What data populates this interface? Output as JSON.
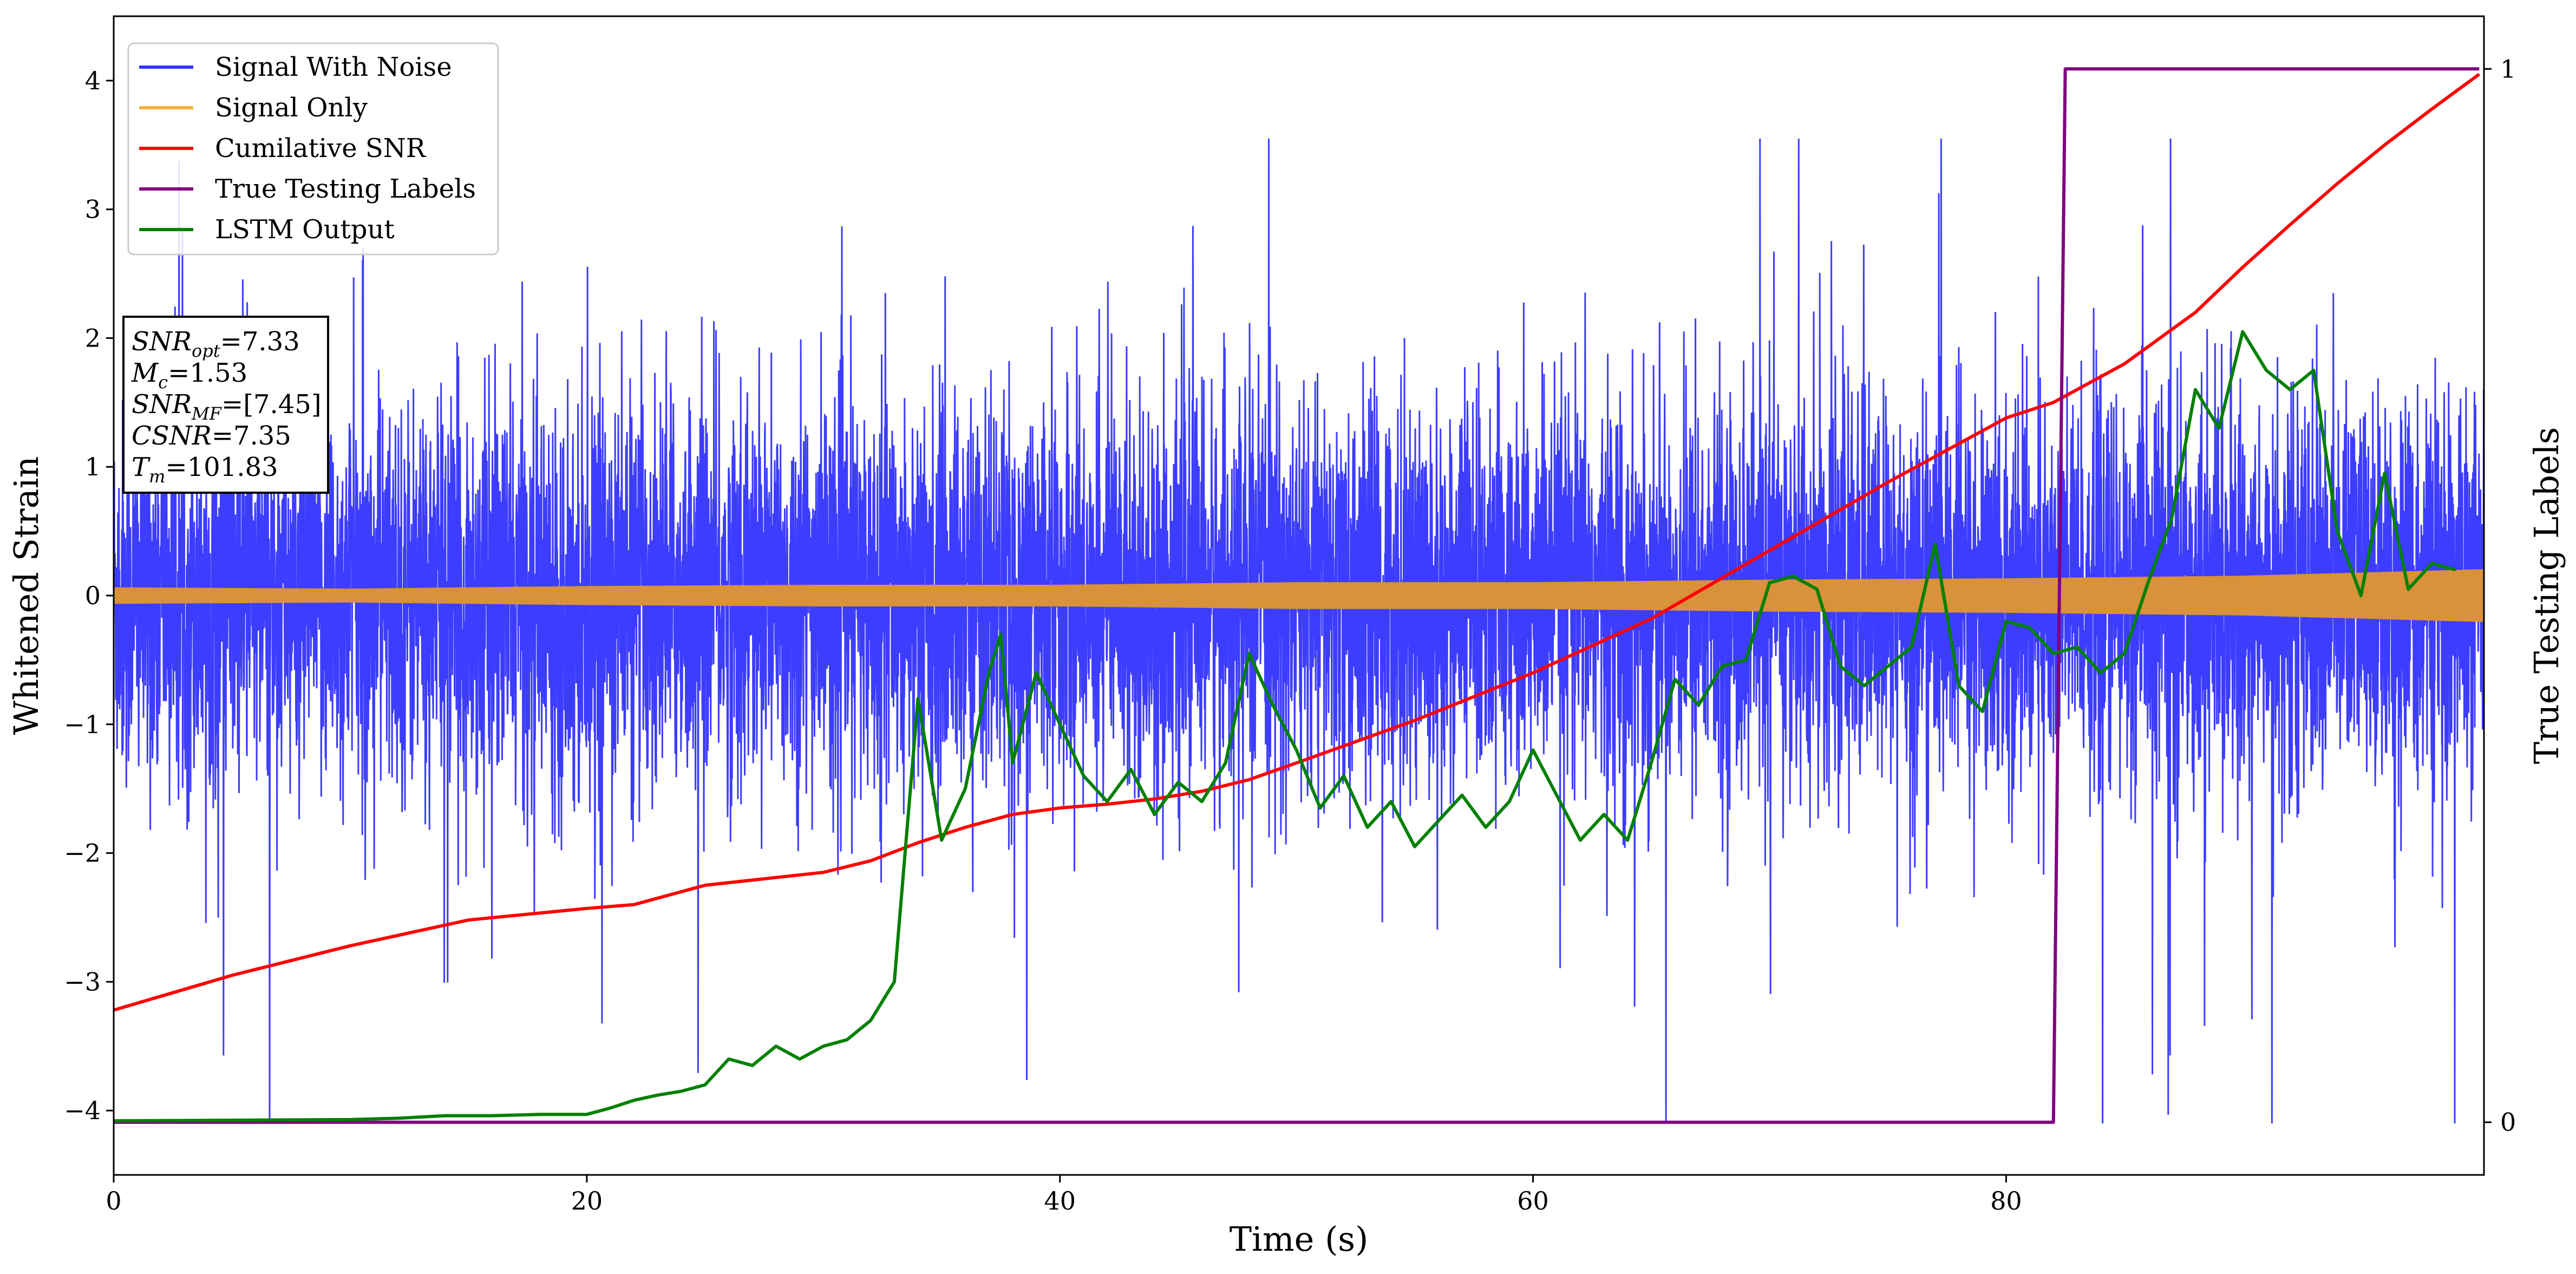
{
  "chart_data": {
    "type": "line",
    "xlabel": "Time (s)",
    "ylabel": "Whitened Strain",
    "y2label": "True Testing Labels",
    "xlim": [
      0,
      100.2
    ],
    "ylim": [
      -4.5,
      4.5
    ],
    "y2lim": [
      -0.05,
      1.05
    ],
    "xticks": [
      "0",
      "20",
      "40",
      "60",
      "80"
    ],
    "xtick_values": [
      0,
      20,
      40,
      60,
      80
    ],
    "yticks": [
      "−4",
      "−3",
      "−2",
      "−1",
      "0",
      "1",
      "2",
      "3",
      "4"
    ],
    "ytick_values": [
      -4,
      -3,
      -2,
      -1,
      0,
      1,
      2,
      3,
      4
    ],
    "y2ticks": [
      "0",
      "1"
    ],
    "y2tick_values": [
      0,
      1
    ],
    "legend_position": "upper-left",
    "series": [
      {
        "name": "Signal With Noise",
        "color": "#3333ff",
        "description_values": "noise band, mostly within [-1.9, 2.1], spikes up to about 3.5 and down to about -4.1",
        "typical_amplitude": [
          -1.9,
          2.1
        ],
        "extremes": [
          -4.1,
          3.55
        ]
      },
      {
        "name": "Signal Only",
        "color": "#f5b342",
        "envelope": {
          "x": [
            0,
            10,
            20,
            30,
            40,
            50,
            60,
            70,
            80,
            90,
            100
          ],
          "amplitude": [
            0.06,
            0.05,
            0.07,
            0.08,
            0.08,
            0.1,
            0.1,
            0.12,
            0.13,
            0.15,
            0.2
          ]
        }
      },
      {
        "name": "Cumilative SNR",
        "color": "#ff0000",
        "x": [
          0,
          5,
          10,
          15,
          20,
          22,
          25,
          28,
          30,
          32,
          34,
          36,
          38,
          40,
          42,
          44,
          46,
          48,
          50,
          55,
          60,
          65,
          70,
          75,
          80,
          82,
          85,
          88,
          90,
          92,
          94,
          96,
          98,
          100
        ],
        "y": [
          -3.22,
          -2.95,
          -2.72,
          -2.52,
          -2.43,
          -2.4,
          -2.25,
          -2.19,
          -2.15,
          -2.06,
          -1.92,
          -1.8,
          -1.7,
          -1.65,
          -1.62,
          -1.58,
          -1.52,
          -1.43,
          -1.3,
          -0.97,
          -0.6,
          -0.18,
          0.35,
          0.88,
          1.38,
          1.5,
          1.8,
          2.2,
          2.55,
          2.88,
          3.2,
          3.5,
          3.78,
          4.05
        ]
      },
      {
        "name": "True Testing Labels",
        "color": "#800080",
        "axis": "right",
        "x": [
          0,
          82.0,
          82.5,
          100
        ],
        "y": [
          0,
          0,
          1,
          1
        ]
      },
      {
        "name": "LSTM Output",
        "color": "#008000",
        "x": [
          0,
          10,
          12,
          14,
          16,
          18,
          20,
          21,
          22,
          23,
          24,
          25,
          26,
          27,
          28,
          29,
          30,
          31,
          32,
          33,
          34,
          35,
          36,
          37,
          37.5,
          38,
          39,
          40,
          41,
          42,
          43,
          44,
          45,
          46,
          47,
          48,
          49,
          50,
          51,
          52,
          53,
          54,
          55,
          56,
          57,
          58,
          59,
          60,
          61,
          62,
          63,
          64,
          65,
          66,
          67,
          68,
          69,
          70,
          71,
          72,
          73,
          74,
          75,
          76,
          77,
          78,
          79,
          80,
          81,
          82,
          83,
          84,
          85,
          86,
          87,
          88,
          89,
          90,
          91,
          92,
          93,
          94,
          95,
          96,
          97,
          98,
          99
        ],
        "y": [
          -4.08,
          -4.07,
          -4.06,
          -4.04,
          -4.04,
          -4.03,
          -4.03,
          -3.98,
          -3.92,
          -3.88,
          -3.85,
          -3.8,
          -3.6,
          -3.65,
          -3.5,
          -3.6,
          -3.5,
          -3.45,
          -3.3,
          -3.0,
          -0.8,
          -1.9,
          -1.5,
          -0.6,
          -0.3,
          -1.3,
          -0.6,
          -1.0,
          -1.4,
          -1.6,
          -1.35,
          -1.7,
          -1.45,
          -1.6,
          -1.3,
          -0.45,
          -0.85,
          -1.2,
          -1.65,
          -1.4,
          -1.8,
          -1.6,
          -1.95,
          -1.75,
          -1.55,
          -1.8,
          -1.6,
          -1.2,
          -1.55,
          -1.9,
          -1.7,
          -1.9,
          -1.3,
          -0.65,
          -0.85,
          -0.55,
          -0.5,
          0.1,
          0.15,
          0.05,
          -0.55,
          -0.7,
          -0.55,
          -0.4,
          0.4,
          -0.7,
          -0.9,
          -0.2,
          -0.25,
          -0.45,
          -0.4,
          -0.6,
          -0.45,
          0.1,
          0.6,
          1.6,
          1.3,
          2.05,
          1.75,
          1.6,
          1.75,
          0.5,
          0.0,
          0.95,
          0.05,
          0.25,
          0.2
        ]
      }
    ]
  },
  "legend": {
    "items": [
      {
        "label": "Signal With Noise",
        "color": "#3333ff"
      },
      {
        "label": "Signal Only",
        "color": "#f5b342"
      },
      {
        "label": "Cumilative SNR",
        "color": "#ff0000"
      },
      {
        "label": "True Testing Labels",
        "color": "#800080"
      },
      {
        "label": "LSTM Output",
        "color": "#008000"
      }
    ]
  },
  "info_box": {
    "lines": [
      {
        "sym": "SNR",
        "sub": "opt",
        "value": "=7.33"
      },
      {
        "sym": "M",
        "sub": "c",
        "value": "=1.53"
      },
      {
        "sym": "SNR",
        "sub": "MF",
        "value": "=[7.45]"
      },
      {
        "sym": "CSNR",
        "sub": "",
        "value": "=7.35"
      },
      {
        "sym": "T",
        "sub": "m",
        "value": "=101.83"
      }
    ]
  },
  "colors": {
    "noise": "#3333ff",
    "signal": "#d9913a",
    "snr": "#ff0000",
    "labels": "#800080",
    "lstm": "#008000"
  }
}
